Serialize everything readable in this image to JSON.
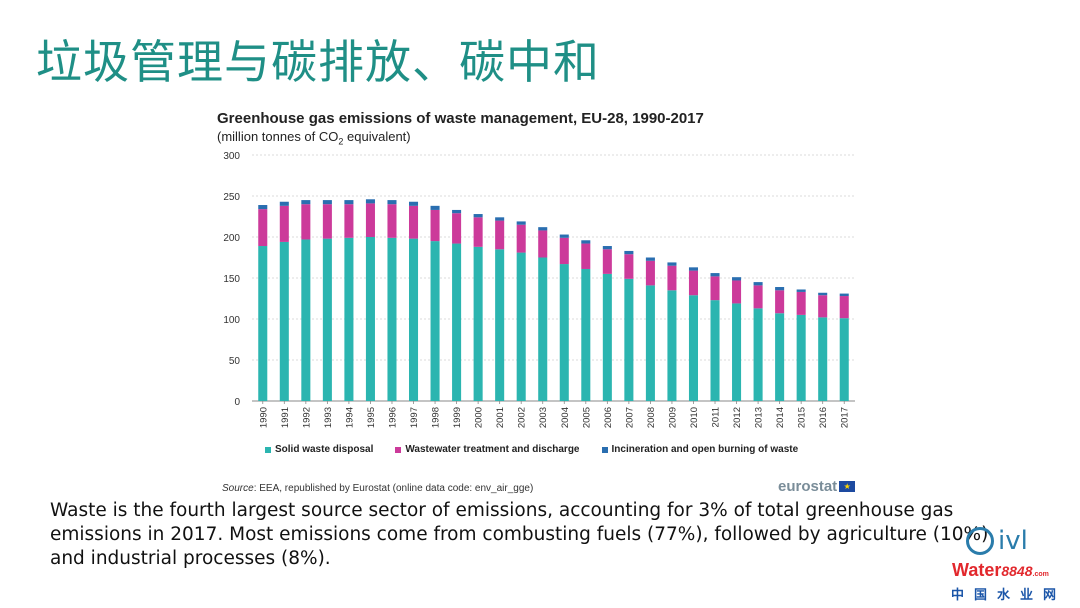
{
  "slide_title": "垃圾管理与碳排放、碳中和",
  "chart_data": {
    "type": "bar",
    "stacked": true,
    "title": "Greenhouse gas emissions of waste management, EU-28, 1990-2017",
    "subtitle_prefix": "(million  tonnes of CO",
    "subtitle_sub": "2",
    "subtitle_suffix": " equivalent)",
    "ylim": [
      0,
      300
    ],
    "yticks": [
      0,
      50,
      100,
      150,
      200,
      250,
      300
    ],
    "grid": true,
    "legend_placement": "bottom",
    "categories": [
      "1990",
      "1991",
      "1992",
      "1993",
      "1994",
      "1995",
      "1996",
      "1997",
      "1998",
      "1999",
      "2000",
      "2001",
      "2002",
      "2003",
      "2004",
      "2005",
      "2006",
      "2007",
      "2008",
      "2009",
      "2010",
      "2011",
      "2012",
      "2013",
      "2014",
      "2015",
      "2016",
      "2017"
    ],
    "series": [
      {
        "name": "Solid waste disposal",
        "color": "#2bb5b0",
        "values": [
          189,
          194,
          197,
          198,
          199,
          200,
          199,
          198,
          195,
          192,
          188,
          185,
          181,
          175,
          167,
          161,
          155,
          149,
          141,
          135,
          129,
          123,
          119,
          113,
          107,
          105,
          102,
          101
        ]
      },
      {
        "name": "Wastewater treatment and discharge",
        "color": "#cc3a9a",
        "values": [
          45,
          44,
          43,
          42,
          41,
          41,
          41,
          40,
          38,
          37,
          36,
          35,
          34,
          33,
          32,
          31,
          30,
          30,
          30,
          30,
          30,
          29,
          28,
          28,
          28,
          28,
          27,
          27
        ]
      },
      {
        "name": "Incineration and open burning of waste",
        "color": "#2a6eb0",
        "values": [
          5,
          5,
          5,
          5,
          5,
          5,
          5,
          5,
          5,
          4,
          4,
          4,
          4,
          4,
          4,
          4,
          4,
          4,
          4,
          4,
          4,
          4,
          4,
          4,
          4,
          3,
          3,
          3
        ]
      }
    ]
  },
  "source": {
    "label": "Source",
    "text": ": EEA, republished by Eurostat (online data code: env_air_gge)"
  },
  "eurostat_logo": "eurostat",
  "body_text": "Waste is the fourth largest source sector of emissions, accounting for 3% of total greenhouse gas emissions in 2017. Most emissions come from combusting fuels (77%), followed by agriculture (10%) and industrial processes (8%).",
  "logos": {
    "ivl": "ivl",
    "water_brand": "Water",
    "water_num": "8848",
    "water_com": ".com",
    "china_water": "中国水业网"
  }
}
